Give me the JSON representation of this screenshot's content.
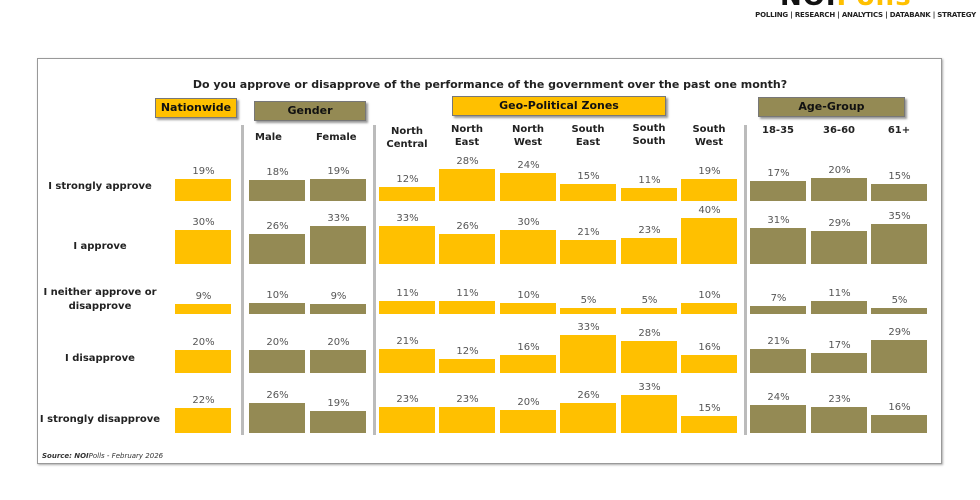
{
  "logo": {
    "text": "NOIPolls",
    "tagline": "POLLING | RESEARCH | ANALYTICS | DATABANK | STRATEGY"
  },
  "source": {
    "label": "Source:",
    "brand_bold": "NOI",
    "brand_rest": "Polls",
    "date": " -  February 2026"
  },
  "colors": {
    "yellow": "#FFC000",
    "olive": "#948A54"
  },
  "chart_data": {
    "type": "bar",
    "title": "Do you approve or disapprove of the performance of the government over the past one month?",
    "groups": [
      {
        "name": "Nationwide",
        "color": "#FFC000",
        "categories": [
          "Nationwide"
        ]
      },
      {
        "name": "Gender",
        "color": "#948A54",
        "categories": [
          "Male",
          "Female"
        ]
      },
      {
        "name": "Geo-Political  Zones",
        "color": "#FFC000",
        "categories": [
          "North Central",
          "North East",
          "North West",
          "South East",
          "South South",
          "South West"
        ]
      },
      {
        "name": "Age-Group",
        "color": "#948A54",
        "categories": [
          "18-35",
          "36-60",
          "61+"
        ]
      }
    ],
    "rows": [
      "I strongly approve",
      "I approve",
      "I neither approve or disapprove",
      "I disapprove",
      "I strongly disapprove"
    ],
    "values": [
      [
        19,
        18,
        19,
        12,
        28,
        24,
        15,
        11,
        19,
        17,
        20,
        15
      ],
      [
        30,
        26,
        33,
        33,
        26,
        30,
        21,
        23,
        40,
        31,
        29,
        35
      ],
      [
        9,
        10,
        9,
        11,
        11,
        10,
        5,
        5,
        10,
        7,
        11,
        5
      ],
      [
        20,
        20,
        20,
        21,
        12,
        16,
        33,
        28,
        16,
        21,
        17,
        29
      ],
      [
        22,
        26,
        19,
        23,
        23,
        20,
        26,
        33,
        15,
        24,
        23,
        16
      ]
    ],
    "unit": "%"
  }
}
